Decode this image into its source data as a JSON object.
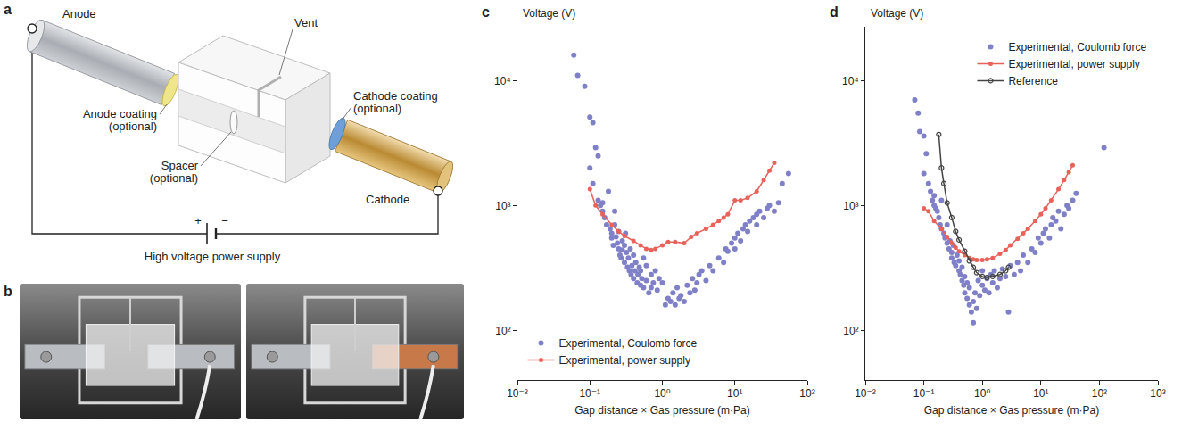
{
  "figure": {
    "a": {
      "label": "a",
      "anode": "Anode",
      "vent": "Vent",
      "anode_coating": "Anode coating (optional)",
      "spacer": "Spacer (optional)",
      "cathode_coating": "Cathode coating (optional)",
      "cathode": "Cathode",
      "power_supply": "High voltage power supply",
      "plus": "+",
      "minus": "−"
    },
    "b": {
      "label": "b"
    }
  },
  "chart_data": [
    {
      "panel": "c",
      "type": "scatter",
      "y_label": "Voltage (V)",
      "x_label": "Gap distance × Gas pressure (m·Pa)",
      "log": true,
      "grid": false,
      "legend": "lower left",
      "xlim": [
        0.01,
        100
      ],
      "ylim": [
        40,
        27000
      ],
      "xticks": [
        {
          "value": 0.01,
          "label": "10⁻²"
        },
        {
          "value": 0.1,
          "label": "10⁻¹"
        },
        {
          "value": 1,
          "label": "10⁰"
        },
        {
          "value": 10,
          "label": "10¹"
        },
        {
          "value": 100,
          "label": "10²"
        }
      ],
      "yticks": [
        {
          "value": 100,
          "label": "10²"
        },
        {
          "value": 1000,
          "label": "10³"
        },
        {
          "value": 10000,
          "label": "10⁴"
        }
      ],
      "series": [
        {
          "name": "Experimental, Coulomb force",
          "type": "scatter",
          "color": "#8080c8",
          "marker": "circle",
          "line_style": "none",
          "x": [
            0.06,
            0.068,
            0.085,
            0.1,
            0.11,
            0.1,
            0.12,
            0.13,
            0.11,
            0.13,
            0.14,
            0.15,
            0.15,
            0.16,
            0.17,
            0.18,
            0.19,
            0.2,
            0.2,
            0.21,
            0.22,
            0.22,
            0.23,
            0.24,
            0.25,
            0.25,
            0.26,
            0.27,
            0.28,
            0.28,
            0.3,
            0.3,
            0.31,
            0.32,
            0.33,
            0.34,
            0.35,
            0.36,
            0.37,
            0.38,
            0.4,
            0.4,
            0.42,
            0.43,
            0.45,
            0.46,
            0.48,
            0.5,
            0.5,
            0.52,
            0.55,
            0.55,
            0.6,
            0.6,
            0.65,
            0.7,
            0.7,
            0.75,
            0.8,
            0.85,
            0.9,
            1,
            1.1,
            1.2,
            1.3,
            1.4,
            1.5,
            1.6,
            1.7,
            1.8,
            2,
            2.2,
            2.4,
            2.6,
            2.8,
            3,
            3.2,
            3.5,
            4,
            4.5,
            5,
            6,
            7,
            7.5,
            8,
            9,
            10,
            10,
            11,
            12,
            13,
            14,
            15,
            16,
            18,
            20,
            20,
            22,
            25,
            28,
            30,
            35,
            40,
            45,
            55
          ],
          "values": [
            16000,
            11000,
            9000,
            5100,
            4600,
            2000,
            2900,
            2500,
            1500,
            1100,
            1000,
            900,
            1050,
            800,
            700,
            1300,
            650,
            600,
            550,
            480,
            900,
            700,
            560,
            500,
            450,
            620,
            400,
            380,
            520,
            440,
            350,
            480,
            600,
            420,
            320,
            380,
            300,
            450,
            280,
            330,
            260,
            400,
            300,
            350,
            240,
            280,
            320,
            230,
            300,
            260,
            380,
            220,
            250,
            330,
            200,
            280,
            220,
            240,
            300,
            210,
            260,
            240,
            160,
            180,
            170,
            200,
            160,
            220,
            180,
            190,
            170,
            230,
            200,
            260,
            210,
            240,
            280,
            300,
            250,
            330,
            300,
            380,
            350,
            450,
            430,
            500,
            450,
            550,
            600,
            520,
            650,
            700,
            620,
            750,
            800,
            700,
            850,
            900,
            800,
            950,
            1000,
            900,
            1050,
            1500,
            1800
          ]
        },
        {
          "name": "Experimental, power supply",
          "type": "line",
          "color": "#e8625a",
          "marker": "circle",
          "line_style": "solid",
          "x": [
            0.1,
            0.12,
            0.15,
            0.2,
            0.25,
            0.3,
            0.4,
            0.5,
            0.6,
            0.7,
            0.8,
            1,
            1.2,
            1.5,
            2,
            2.5,
            3,
            4,
            5,
            6,
            7,
            8,
            10,
            12,
            15,
            20,
            25,
            30,
            35
          ],
          "values": [
            1350,
            1000,
            850,
            700,
            620,
            570,
            520,
            480,
            450,
            440,
            450,
            480,
            510,
            510,
            500,
            560,
            600,
            650,
            700,
            750,
            800,
            850,
            1100,
            1100,
            1150,
            1300,
            1600,
            1900,
            2200
          ]
        }
      ]
    },
    {
      "panel": "d",
      "type": "scatter",
      "y_label": "Voltage (V)",
      "x_label": "Gap distance × Gas pressure (m·Pa)",
      "log": true,
      "grid": false,
      "legend": "upper right",
      "xlim": [
        0.01,
        1000
      ],
      "ylim": [
        40,
        27000
      ],
      "xticks": [
        {
          "value": 0.01,
          "label": "10⁻²"
        },
        {
          "value": 0.1,
          "label": "10⁻¹"
        },
        {
          "value": 1,
          "label": "10⁰"
        },
        {
          "value": 10,
          "label": "10¹"
        },
        {
          "value": 100,
          "label": "10²"
        },
        {
          "value": 1000,
          "label": "10³"
        }
      ],
      "yticks": [
        {
          "value": 100,
          "label": "10²"
        },
        {
          "value": 1000,
          "label": "10³"
        },
        {
          "value": 10000,
          "label": "10⁴"
        }
      ],
      "series": [
        {
          "name": "Experimental, Coulomb force",
          "type": "scatter",
          "color": "#8080c8",
          "marker": "circle",
          "line_style": "none",
          "x": [
            0.07,
            0.08,
            0.085,
            0.1,
            0.11,
            0.1,
            0.12,
            0.13,
            0.14,
            0.15,
            0.16,
            0.15,
            0.17,
            0.18,
            0.19,
            0.2,
            0.2,
            0.22,
            0.23,
            0.25,
            0.25,
            0.27,
            0.28,
            0.3,
            0.3,
            0.32,
            0.33,
            0.35,
            0.37,
            0.4,
            0.4,
            0.42,
            0.45,
            0.45,
            0.48,
            0.5,
            0.5,
            0.55,
            0.55,
            0.6,
            0.6,
            0.65,
            0.7,
            0.7,
            0.75,
            0.8,
            0.85,
            0.9,
            1,
            1,
            1.1,
            1.2,
            1.3,
            1.4,
            1.5,
            1.6,
            1.8,
            2,
            2.2,
            2.5,
            2.8,
            3,
            3.5,
            4,
            4.5,
            5,
            6,
            7,
            8,
            9,
            10,
            11,
            12,
            14,
            15,
            16,
            18,
            20,
            22,
            25,
            28,
            30,
            35,
            40,
            120
          ],
          "values": [
            7000,
            5500,
            3900,
            3600,
            2600,
            1800,
            1500,
            1300,
            1100,
            1000,
            950,
            1200,
            900,
            800,
            700,
            650,
            1100,
            600,
            550,
            500,
            700,
            450,
            520,
            420,
            380,
            480,
            350,
            330,
            400,
            300,
            360,
            280,
            250,
            320,
            230,
            270,
            200,
            180,
            240,
            160,
            220,
            140,
            170,
            115,
            200,
            150,
            250,
            190,
            230,
            300,
            210,
            260,
            200,
            280,
            240,
            300,
            220,
            260,
            310,
            270,
            140,
            330,
            280,
            350,
            300,
            400,
            350,
            450,
            420,
            550,
            500,
            600,
            650,
            550,
            700,
            800,
            750,
            900,
            650,
            850,
            1000,
            950,
            1100,
            1250,
            2900
          ]
        },
        {
          "name": "Experimental, power supply",
          "type": "line",
          "color": "#e8625a",
          "marker": "circle",
          "line_style": "solid",
          "x": [
            0.1,
            0.12,
            0.15,
            0.2,
            0.25,
            0.3,
            0.35,
            0.4,
            0.5,
            0.6,
            0.7,
            0.8,
            1,
            1.2,
            1.5,
            2,
            2.5,
            3,
            4,
            5,
            6,
            8,
            10,
            12,
            15,
            20,
            25,
            30,
            35
          ],
          "values": [
            950,
            900,
            750,
            650,
            560,
            500,
            460,
            430,
            400,
            380,
            370,
            365,
            365,
            370,
            380,
            410,
            440,
            480,
            540,
            600,
            650,
            750,
            850,
            950,
            1100,
            1350,
            1600,
            1850,
            2100
          ]
        },
        {
          "name": "Reference",
          "type": "line",
          "color": "#444444",
          "marker": "circle-open",
          "line_style": "solid",
          "x": [
            0.18,
            0.2,
            0.22,
            0.25,
            0.3,
            0.35,
            0.4,
            0.5,
            0.6,
            0.7,
            0.8,
            1,
            1.2,
            1.5,
            2,
            2.5,
            2.8
          ],
          "values": [
            3700,
            2000,
            1500,
            1050,
            800,
            620,
            530,
            430,
            360,
            320,
            290,
            270,
            265,
            270,
            280,
            300,
            320
          ]
        }
      ]
    }
  ]
}
